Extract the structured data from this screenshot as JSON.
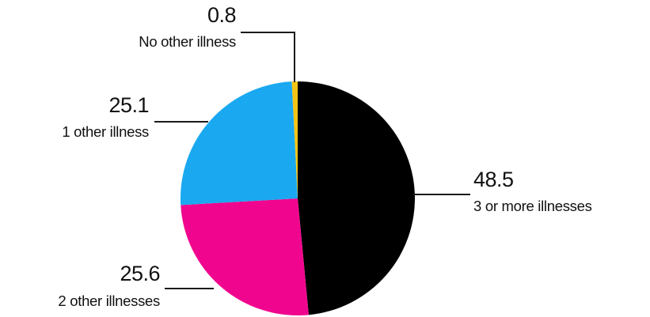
{
  "chart_data": {
    "type": "pie",
    "title": "",
    "slices": [
      {
        "label": "3 or more illnesses",
        "value": 48.5,
        "value_text": "48.5",
        "color": "#000000"
      },
      {
        "label": "2 other illnesses",
        "value": 25.6,
        "value_text": "25.6",
        "color": "#f0068e"
      },
      {
        "label": "1 other illness",
        "value": 25.1,
        "value_text": "25.1",
        "color": "#1aa8f0"
      },
      {
        "label": "No other illness",
        "value": 0.8,
        "value_text": "0.8",
        "color": "#f2c418"
      }
    ],
    "start": "12 o'clock",
    "direction": "clockwise",
    "legend": "none (direct labels)"
  }
}
